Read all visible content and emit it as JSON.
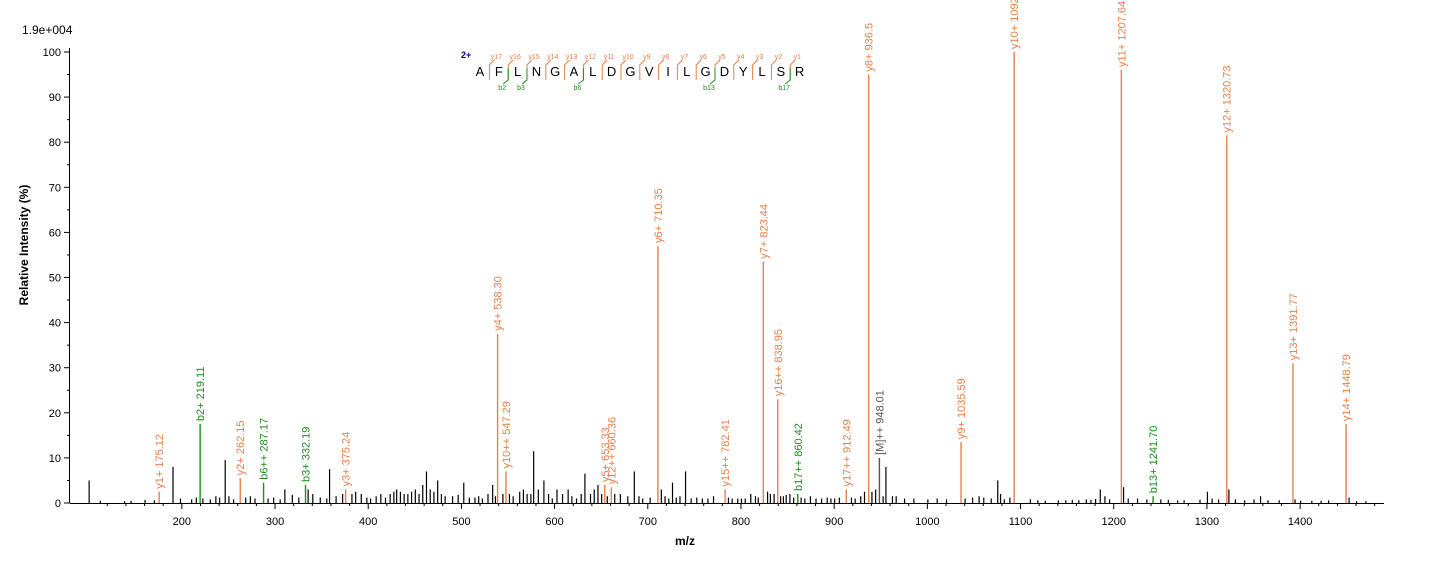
{
  "chart_data": {
    "type": "bar",
    "title": "",
    "xlabel": "m/z",
    "ylabel": "Relative   Intensity (%)",
    "scale_label": "1.9e+004",
    "xlim": [
      80,
      1490
    ],
    "ylim": [
      0,
      100
    ],
    "xticks": [
      "200",
      "300",
      "400",
      "500",
      "600",
      "700",
      "800",
      "900",
      "1000",
      "1100",
      "1200",
      "1300",
      "1400"
    ],
    "yticks": [
      "0",
      "10",
      "20",
      "30",
      "40",
      "50",
      "60",
      "70",
      "80",
      "90",
      "100"
    ],
    "grid": false,
    "colors": {
      "y_ion": "#e8804a",
      "b_ion": "#1e8c1e",
      "precursor": "#555555",
      "unlabeled": "#000000",
      "charge": "#00008b"
    },
    "labeled_peaks": [
      {
        "mz": 175.12,
        "intensity": 2.5,
        "label": "y1+ 175.12",
        "type": "y"
      },
      {
        "mz": 219.11,
        "intensity": 17.5,
        "label": "b2+ 219.11",
        "type": "b"
      },
      {
        "mz": 262.15,
        "intensity": 5.5,
        "label": "y2+ 262.15",
        "type": "y"
      },
      {
        "mz": 287.17,
        "intensity": 4.5,
        "label": "b6++ 287.17",
        "type": "b"
      },
      {
        "mz": 332.19,
        "intensity": 4,
        "label": "b3+ 332.19",
        "type": "b"
      },
      {
        "mz": 375.24,
        "intensity": 3,
        "label": "y3+ 375.24",
        "type": "y"
      },
      {
        "mz": 538.3,
        "intensity": 37.5,
        "label": "y4+ 538.30",
        "type": "y"
      },
      {
        "mz": 547.29,
        "intensity": 7,
        "label": "y10++ 547.29",
        "type": "y"
      },
      {
        "mz": 653.33,
        "intensity": 4,
        "label": "y5+ 653.33",
        "type": "y"
      },
      {
        "mz": 660.36,
        "intensity": 3.5,
        "label": "y12++ 660.36",
        "type": "y"
      },
      {
        "mz": 710.35,
        "intensity": 57,
        "label": "y6+ 710.35",
        "type": "y"
      },
      {
        "mz": 782.41,
        "intensity": 3,
        "label": "y15++ 782.41",
        "type": "y"
      },
      {
        "mz": 823.44,
        "intensity": 53.5,
        "label": "y7+ 823.44",
        "type": "y"
      },
      {
        "mz": 838.95,
        "intensity": 23,
        "label": "y16++ 838.95",
        "type": "y"
      },
      {
        "mz": 860.42,
        "intensity": 2,
        "label": "b17++ 860.42",
        "type": "b"
      },
      {
        "mz": 912.49,
        "intensity": 3,
        "label": "y17++ 912.49",
        "type": "y"
      },
      {
        "mz": 936.5,
        "intensity": 95,
        "label": "y8+ 936.5",
        "type": "y"
      },
      {
        "mz": 948.01,
        "intensity": 10,
        "label": "[M]++ 948.01",
        "type": "precursor"
      },
      {
        "mz": 1035.59,
        "intensity": 13.5,
        "label": "y9+ 1035.59",
        "type": "y"
      },
      {
        "mz": 1092.61,
        "intensity": 100,
        "label": "y10+ 1092.61",
        "type": "y"
      },
      {
        "mz": 1207.64,
        "intensity": 96,
        "label": "y11+ 1207.64",
        "type": "y"
      },
      {
        "mz": 1241.7,
        "intensity": 1.5,
        "label": "b13+ 1241.70",
        "type": "b"
      },
      {
        "mz": 1320.73,
        "intensity": 81.5,
        "label": "y12+ 1320.73",
        "type": "y"
      },
      {
        "mz": 1391.77,
        "intensity": 31,
        "label": "y13+ 1391.77",
        "type": "y"
      },
      {
        "mz": 1448.79,
        "intensity": 17.5,
        "label": "y14+ 1448.79",
        "type": "y"
      }
    ],
    "unlabeled_peaks": [
      [
        100,
        5
      ],
      [
        112,
        0.5
      ],
      [
        138,
        0.4
      ],
      [
        145,
        0.5
      ],
      [
        160,
        0.7
      ],
      [
        170,
        0.6
      ],
      [
        190,
        8
      ],
      [
        198,
        1
      ],
      [
        210,
        0.8
      ],
      [
        215,
        1.2
      ],
      [
        222,
        1
      ],
      [
        230,
        0.8
      ],
      [
        236,
        1.5
      ],
      [
        240,
        1.2
      ],
      [
        246,
        9.5
      ],
      [
        250,
        1.5
      ],
      [
        255,
        0.8
      ],
      [
        268,
        1.2
      ],
      [
        273,
        1.5
      ],
      [
        278,
        1
      ],
      [
        292,
        1
      ],
      [
        298,
        1.2
      ],
      [
        305,
        0.8
      ],
      [
        310,
        3
      ],
      [
        318,
        1.8
      ],
      [
        325,
        1.2
      ],
      [
        335,
        3
      ],
      [
        340,
        2
      ],
      [
        348,
        1.2
      ],
      [
        355,
        1
      ],
      [
        358,
        7.5
      ],
      [
        365,
        1.5
      ],
      [
        372,
        2
      ],
      [
        382,
        2
      ],
      [
        386,
        2.5
      ],
      [
        392,
        2
      ],
      [
        398,
        1.2
      ],
      [
        402,
        1
      ],
      [
        408,
        1.5
      ],
      [
        413,
        2
      ],
      [
        418,
        1.2
      ],
      [
        423,
        2
      ],
      [
        427,
        2.5
      ],
      [
        430,
        3
      ],
      [
        434,
        2.5
      ],
      [
        438,
        2
      ],
      [
        442,
        2
      ],
      [
        446,
        2.5
      ],
      [
        450,
        3
      ],
      [
        454,
        2
      ],
      [
        458,
        4
      ],
      [
        462,
        7
      ],
      [
        466,
        3
      ],
      [
        470,
        2.5
      ],
      [
        474,
        5
      ],
      [
        478,
        2
      ],
      [
        482,
        1.5
      ],
      [
        490,
        1.5
      ],
      [
        496,
        1.8
      ],
      [
        502,
        4.5
      ],
      [
        508,
        1.2
      ],
      [
        514,
        1.2
      ],
      [
        518,
        1.5
      ],
      [
        522,
        1
      ],
      [
        528,
        2
      ],
      [
        533,
        4
      ],
      [
        536,
        1.5
      ],
      [
        544,
        2
      ],
      [
        551,
        2
      ],
      [
        555,
        1.5
      ],
      [
        562,
        2.5
      ],
      [
        566,
        3
      ],
      [
        570,
        2
      ],
      [
        574,
        2
      ],
      [
        577,
        11.5
      ],
      [
        582,
        3
      ],
      [
        588,
        5
      ],
      [
        593,
        2
      ],
      [
        597,
        1
      ],
      [
        602,
        3
      ],
      [
        608,
        2
      ],
      [
        614,
        3
      ],
      [
        618,
        1.5
      ],
      [
        623,
        1
      ],
      [
        628,
        2
      ],
      [
        632,
        6.5
      ],
      [
        638,
        2
      ],
      [
        642,
        3
      ],
      [
        646,
        4
      ],
      [
        650,
        2
      ],
      [
        656,
        1.5
      ],
      [
        664,
        2
      ],
      [
        670,
        2
      ],
      [
        678,
        1.5
      ],
      [
        685,
        7
      ],
      [
        690,
        1.5
      ],
      [
        694,
        1
      ],
      [
        702,
        1.2
      ],
      [
        714,
        3
      ],
      [
        718,
        1.5
      ],
      [
        722,
        1
      ],
      [
        726,
        4.5
      ],
      [
        730,
        1.2
      ],
      [
        734,
        1.5
      ],
      [
        740,
        7
      ],
      [
        746,
        1
      ],
      [
        752,
        1.2
      ],
      [
        758,
        1
      ],
      [
        764,
        1
      ],
      [
        770,
        1.5
      ],
      [
        786,
        1.2
      ],
      [
        790,
        1
      ],
      [
        796,
        1
      ],
      [
        800,
        1
      ],
      [
        804,
        1
      ],
      [
        810,
        2
      ],
      [
        815,
        1.5
      ],
      [
        818,
        1.2
      ],
      [
        828,
        2.5
      ],
      [
        831,
        2
      ],
      [
        835,
        2
      ],
      [
        842,
        1.5
      ],
      [
        845,
        1.5
      ],
      [
        848,
        1.8
      ],
      [
        852,
        2
      ],
      [
        856,
        1.2
      ],
      [
        864,
        1.2
      ],
      [
        868,
        1
      ],
      [
        874,
        1.5
      ],
      [
        880,
        1
      ],
      [
        886,
        1
      ],
      [
        892,
        1.2
      ],
      [
        896,
        1
      ],
      [
        900,
        1
      ],
      [
        905,
        1.2
      ],
      [
        918,
        1.2
      ],
      [
        922,
        1
      ],
      [
        928,
        1.5
      ],
      [
        932,
        2.5
      ],
      [
        940,
        2.5
      ],
      [
        944,
        3
      ],
      [
        952,
        1.5
      ],
      [
        955,
        8
      ],
      [
        962,
        1.5
      ],
      [
        966,
        1.5
      ],
      [
        975,
        1
      ],
      [
        985,
        1
      ],
      [
        1000,
        0.8
      ],
      [
        1010,
        1
      ],
      [
        1020,
        0.8
      ],
      [
        1040,
        1
      ],
      [
        1048,
        1.2
      ],
      [
        1055,
        1.5
      ],
      [
        1060,
        1.2
      ],
      [
        1068,
        1
      ],
      [
        1075,
        5
      ],
      [
        1078,
        2
      ],
      [
        1082,
        0.8
      ],
      [
        1088,
        1.2
      ],
      [
        1110,
        0.8
      ],
      [
        1118,
        0.6
      ],
      [
        1126,
        0.5
      ],
      [
        1140,
        0.6
      ],
      [
        1148,
        0.6
      ],
      [
        1155,
        0.7
      ],
      [
        1162,
        0.6
      ],
      [
        1170,
        0.8
      ],
      [
        1175,
        0.7
      ],
      [
        1180,
        0.9
      ],
      [
        1185,
        3
      ],
      [
        1190,
        1.5
      ],
      [
        1195,
        0.8
      ],
      [
        1210,
        3.5
      ],
      [
        1215,
        1
      ],
      [
        1225,
        1
      ],
      [
        1235,
        0.8
      ],
      [
        1250,
        0.8
      ],
      [
        1258,
        0.7
      ],
      [
        1268,
        0.6
      ],
      [
        1275,
        0.6
      ],
      [
        1292,
        0.7
      ],
      [
        1300,
        2.5
      ],
      [
        1305,
        1
      ],
      [
        1312,
        0.8
      ],
      [
        1323,
        3
      ],
      [
        1330,
        0.8
      ],
      [
        1340,
        0.6
      ],
      [
        1350,
        0.8
      ],
      [
        1357,
        1.5
      ],
      [
        1365,
        0.6
      ],
      [
        1377,
        0.6
      ],
      [
        1394,
        0.8
      ],
      [
        1400,
        0.5
      ],
      [
        1412,
        0.5
      ],
      [
        1422,
        0.5
      ],
      [
        1430,
        0.6
      ],
      [
        1452,
        1.2
      ],
      [
        1460,
        0.4
      ],
      [
        1470,
        0.4
      ]
    ],
    "sequence": {
      "charge": "2+",
      "letters": [
        "A",
        "F",
        "L",
        "N",
        "G",
        "A",
        "L",
        "D",
        "G",
        "V",
        "I",
        "L",
        "G",
        "D",
        "Y",
        "L",
        "S",
        "R"
      ],
      "y_ions": [
        "y17",
        "y16",
        "y15",
        "y14",
        "y13",
        "y12",
        "y11",
        "y10",
        "y9",
        "y8",
        "y7",
        "y6",
        "y5",
        "y4",
        "y3",
        "y2",
        "y1"
      ],
      "b_ions": [
        {
          "after": 2,
          "label": "b2"
        },
        {
          "after": 3,
          "label": "b3"
        },
        {
          "after": 6,
          "label": "b6"
        },
        {
          "after": 13,
          "label": "b13"
        },
        {
          "after": 17,
          "label": "b17"
        }
      ]
    }
  }
}
